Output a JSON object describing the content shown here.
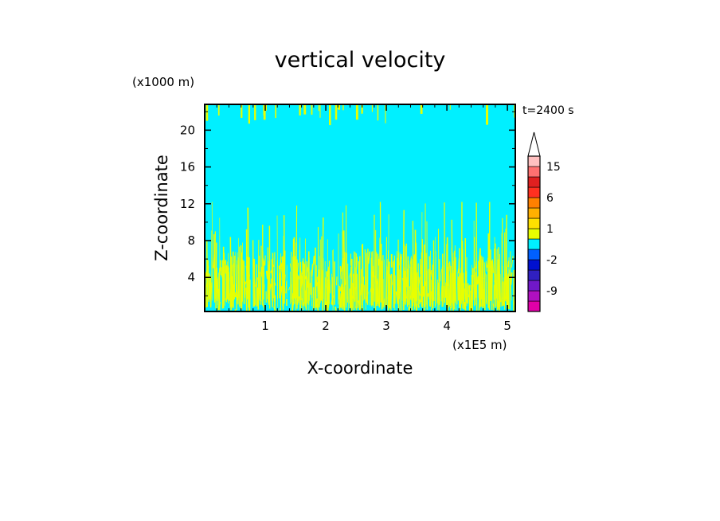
{
  "chart_data": {
    "type": "heatmap",
    "title": "vertical velocity",
    "xlabel": "X-coordinate",
    "ylabel": "Z-coordinate",
    "x_unit_label": "(x1E5 m)",
    "y_unit_label": "(x1000 m)",
    "time_label": "t=2400 s",
    "xlim": [
      0,
      5.13
    ],
    "ylim": [
      0.3,
      22.8
    ],
    "x_ticks": [
      1,
      2,
      3,
      4,
      5
    ],
    "x_tick_labels": [
      "1",
      "2",
      "3",
      "4",
      "5"
    ],
    "y_ticks": [
      4,
      8,
      12,
      16,
      20
    ],
    "y_tick_labels": [
      "4",
      "8",
      "12",
      "16",
      "20"
    ],
    "grid": false,
    "background_field_value": "near zero",
    "features": [
      {
        "name": "updraft-streaks-lower",
        "z_range": [
          0.3,
          12.2
        ],
        "color": "#e8ff00"
      },
      {
        "name": "streaks-top",
        "z_range": [
          20.5,
          22.8
        ],
        "color": "#e8ff00"
      }
    ],
    "colorbar": {
      "levels": [
        -12,
        -9,
        -6,
        -3,
        -2,
        -1,
        0,
        1,
        2,
        3,
        6,
        9,
        12,
        15,
        18
      ],
      "tick_labels": [
        "15",
        "6",
        "1",
        "-2",
        "-9"
      ],
      "tick_values": [
        15,
        6,
        1,
        -2,
        -9
      ],
      "extend": "max",
      "colors": [
        "#e000a8",
        "#b010c0",
        "#7018c8",
        "#3020c0",
        "#0010d0",
        "#0060ff",
        "#00f0ff",
        "#e8ff00",
        "#ffe000",
        "#ffb000",
        "#ff8000",
        "#ff3020",
        "#e02020",
        "#ff7070",
        "#ffc0c0"
      ]
    }
  }
}
